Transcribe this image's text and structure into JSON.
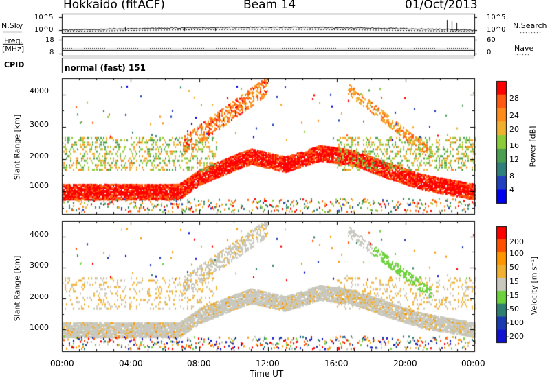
{
  "header": {
    "station": "Hokkaido (fitACF)",
    "beam": "Beam 14",
    "date": "01/Oct/2013"
  },
  "strips": {
    "nsky": {
      "label": "N.Sky",
      "ticks": [
        "10^5",
        "10^0"
      ]
    },
    "nsearch": {
      "label": "N.Search",
      "ticks": [
        "10^5",
        "10^0"
      ]
    },
    "freq": {
      "label_line1": "Freq.",
      "label_line2": "[MHz]",
      "ticks": [
        "18",
        "8"
      ]
    },
    "nave": {
      "label": "Nave",
      "ticks": [
        "60",
        "0"
      ]
    },
    "cpid": {
      "label": "CPID",
      "value": "normal (fast) 151"
    }
  },
  "chart_data": [
    {
      "type": "heatmap",
      "quantity": "Power",
      "xlabel": "Time UT",
      "ylabel": "Slant Range [km]",
      "x_range_hours": [
        0,
        24
      ],
      "ylim": [
        300,
        4500
      ],
      "yticks": [
        "4000",
        "3000",
        "2000",
        "1000"
      ],
      "colorbar": {
        "label": "Power [dB]",
        "ticks": [
          "28",
          "24",
          "20",
          "16",
          "12",
          "8",
          "4"
        ],
        "range": [
          0,
          30
        ],
        "colors": [
          "#0000ee",
          "#2040c0",
          "#2f7f7a",
          "#4aa050",
          "#8ccc3a",
          "#f0b030",
          "#ff8c1a",
          "#ff5a10",
          "#ff0000"
        ]
      },
      "main_echo_band": [
        {
          "t": 0,
          "range": 1000
        },
        {
          "t": 6.8,
          "range": 1000
        },
        {
          "t": 8,
          "range": 1450
        },
        {
          "t": 10,
          "range": 1900
        },
        {
          "t": 11,
          "range": 2100
        },
        {
          "t": 13,
          "range": 1850
        },
        {
          "t": 15,
          "range": 2200
        },
        {
          "t": 17,
          "range": 2050
        },
        {
          "t": 19,
          "range": 1650
        },
        {
          "t": 21,
          "range": 1300
        },
        {
          "t": 24,
          "range": 1000
        }
      ]
    },
    {
      "type": "heatmap",
      "quantity": "Velocity",
      "xlabel": "Time UT",
      "ylabel": "Slant Range [km]",
      "x_range_hours": [
        0,
        24
      ],
      "ylim": [
        300,
        4500
      ],
      "yticks": [
        "4000",
        "3000",
        "2000",
        "1000"
      ],
      "xticks": [
        "00:00",
        "04:00",
        "08:00",
        "12:00",
        "16:00",
        "20:00",
        "00:00"
      ],
      "colorbar": {
        "label": "Velocity [m s⁻¹]",
        "ticks": [
          "200",
          "100",
          "50",
          "15",
          "-15",
          "-50",
          "-100",
          "-200"
        ],
        "colors": [
          "#ff0000",
          "#ff5000",
          "#ff9600",
          "#f0b030",
          "#c8c8be",
          "#6cd23a",
          "#2f7f70",
          "#1a3ab0",
          "#1010d0"
        ]
      }
    }
  ]
}
